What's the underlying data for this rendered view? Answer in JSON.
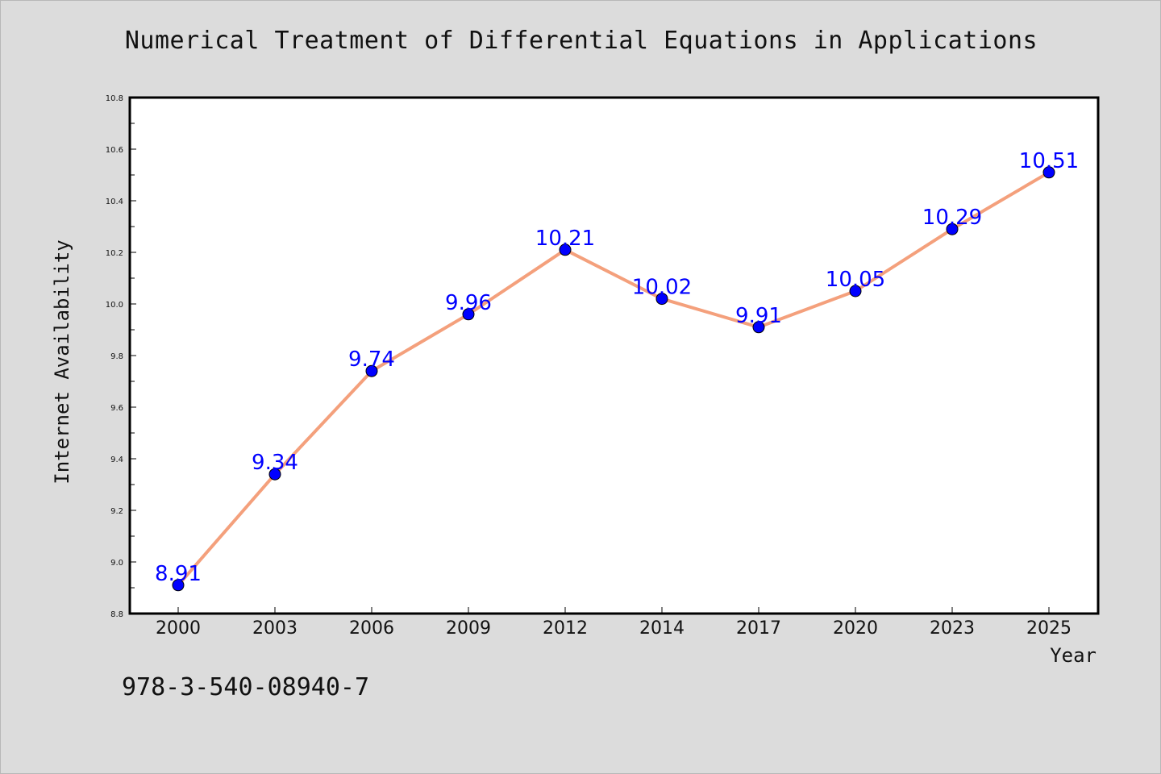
{
  "chart_data": {
    "type": "line",
    "title": "Numerical Treatment of Differential Equations in Applications",
    "xlabel": "Year",
    "ylabel": "Internet Availability",
    "categories": [
      "2000",
      "2003",
      "2006",
      "2009",
      "2012",
      "2014",
      "2017",
      "2020",
      "2023",
      "2025"
    ],
    "values": [
      8.91,
      9.34,
      9.74,
      9.96,
      10.21,
      10.02,
      9.91,
      10.05,
      10.29,
      10.51
    ],
    "data_labels": [
      "8.91",
      "9.34",
      "9.74",
      "9.96",
      "10.21",
      "10.02",
      "9.91",
      "10.05",
      "10.29",
      "10.51"
    ],
    "ylim": [
      8.8,
      10.8
    ],
    "yticks": [
      "8.8",
      "9.0",
      "9.2",
      "9.4",
      "9.6",
      "9.8",
      "10.0",
      "10.2",
      "10.4",
      "10.6",
      "10.8"
    ],
    "grid": false,
    "line_color": "#f4a07c",
    "marker_color": "#0000ff",
    "label_color": "#0000ff"
  },
  "footer": {
    "isbn": "978-3-540-08940-7"
  }
}
